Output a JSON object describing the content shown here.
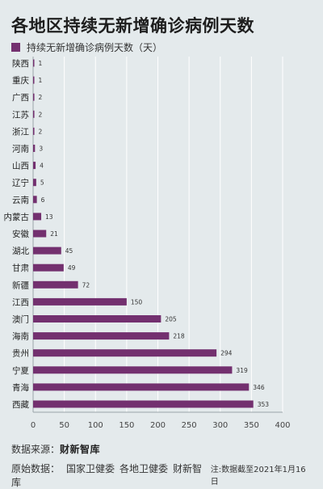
{
  "title": "各地区持续无新增确诊病例天数",
  "legend_label": "持续无新增确诊病例天数（天）",
  "colors": {
    "bar": "#73306f",
    "background": "#e4eaec",
    "axis": "#9aa4a8",
    "grid": "#ffffff"
  },
  "chart_data": {
    "type": "bar",
    "orientation": "horizontal",
    "categories": [
      "陕西",
      "重庆",
      "广西",
      "江苏",
      "浙江",
      "河南",
      "山西",
      "辽宁",
      "云南",
      "内蒙古",
      "安徽",
      "湖北",
      "甘肃",
      "新疆",
      "江西",
      "澳门",
      "海南",
      "贵州",
      "宁夏",
      "青海",
      "西藏"
    ],
    "series": [
      {
        "name": "持续无新增确诊病例天数（天）",
        "values": [
          1,
          1,
          2,
          2,
          2,
          3,
          4,
          5,
          6,
          13,
          21,
          45,
          49,
          72,
          150,
          205,
          218,
          294,
          319,
          346,
          353
        ]
      }
    ],
    "xlim": [
      0,
      400
    ],
    "xticks": [
      0,
      50,
      100,
      150,
      200,
      250,
      300,
      350,
      400
    ],
    "grid": true,
    "legend_position": "top-left"
  },
  "footer": {
    "data_source_label": "数据来源：",
    "data_source_brand": "财新智库",
    "original_data_label": "原始数据：",
    "original_sources": [
      "国家卫健委",
      "各地卫健委",
      "财新智库"
    ],
    "note": "注:数据截至2021年1月16日"
  }
}
